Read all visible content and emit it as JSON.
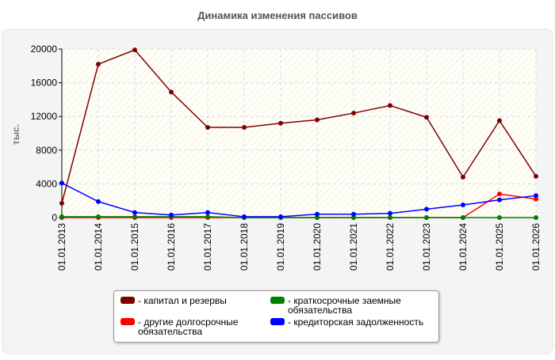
{
  "chart_data": {
    "type": "line",
    "title": "Динамика изменения пассивов",
    "y_label": "тыс.",
    "categories": [
      "01.01.2013",
      "01.01.2014",
      "01.01.2015",
      "01.01.2016",
      "01.01.2017",
      "01.01.2018",
      "01.01.2019",
      "01.01.2020",
      "01.01.2021",
      "01.01.2022",
      "01.01.2023",
      "01.01.2024",
      "01.01.2025",
      "01.01.2026"
    ],
    "series": [
      {
        "name": "- капитал и резервы",
        "color": "#800000",
        "values": [
          1700,
          18200,
          19900,
          14900,
          10700,
          10700,
          11200,
          11600,
          12400,
          13300,
          11900,
          4800,
          11500,
          4900
        ]
      },
      {
        "name": "- другие долгосрочные обязательства",
        "color": "#ff0000",
        "values": [
          0,
          0,
          0,
          0,
          0,
          0,
          0,
          0,
          0,
          0,
          0,
          0,
          2800,
          2200
        ]
      },
      {
        "name": "- краткосрочные заемные обязательства",
        "color": "#008000",
        "values": [
          100,
          100,
          100,
          100,
          100,
          0,
          0,
          0,
          0,
          0,
          0,
          0,
          0,
          0
        ]
      },
      {
        "name": "- кредиторская задолженность",
        "color": "#0000ff",
        "values": [
          4100,
          1900,
          600,
          300,
          600,
          100,
          100,
          400,
          400,
          500,
          1000,
          1500,
          2100,
          2600
        ]
      }
    ],
    "ylim": [
      0,
      20000
    ],
    "yticks": [
      0,
      4000,
      8000,
      12000,
      16000,
      20000
    ],
    "grid": true
  }
}
